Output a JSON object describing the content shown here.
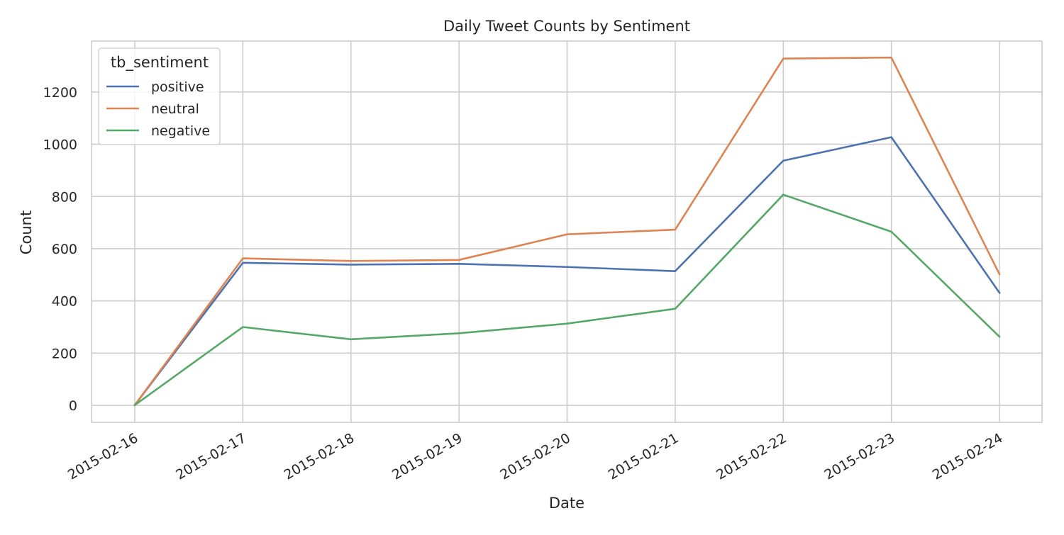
{
  "chart_data": {
    "type": "line",
    "title": "Daily Tweet Counts by Sentiment",
    "xlabel": "Date",
    "ylabel": "Count",
    "x": [
      "2015-02-16",
      "2015-02-17",
      "2015-02-18",
      "2015-02-19",
      "2015-02-20",
      "2015-02-21",
      "2015-02-22",
      "2015-02-23",
      "2015-02-24"
    ],
    "ylim": [
      -65,
      1395
    ],
    "yticks": [
      0,
      200,
      400,
      600,
      800,
      1000,
      1200
    ],
    "grid": true,
    "legend": {
      "title": "tb_sentiment",
      "placement": "upper-left"
    },
    "series": [
      {
        "name": "positive",
        "color": "#4c72b0",
        "values": [
          1,
          546,
          539,
          542,
          530,
          514,
          937,
          1027,
          431
        ]
      },
      {
        "name": "neutral",
        "color": "#dd8452",
        "values": [
          1,
          563,
          553,
          557,
          655,
          673,
          1328,
          1332,
          502
        ]
      },
      {
        "name": "negative",
        "color": "#55a868",
        "values": [
          1,
          300,
          253,
          276,
          313,
          370,
          807,
          665,
          263
        ]
      }
    ]
  }
}
